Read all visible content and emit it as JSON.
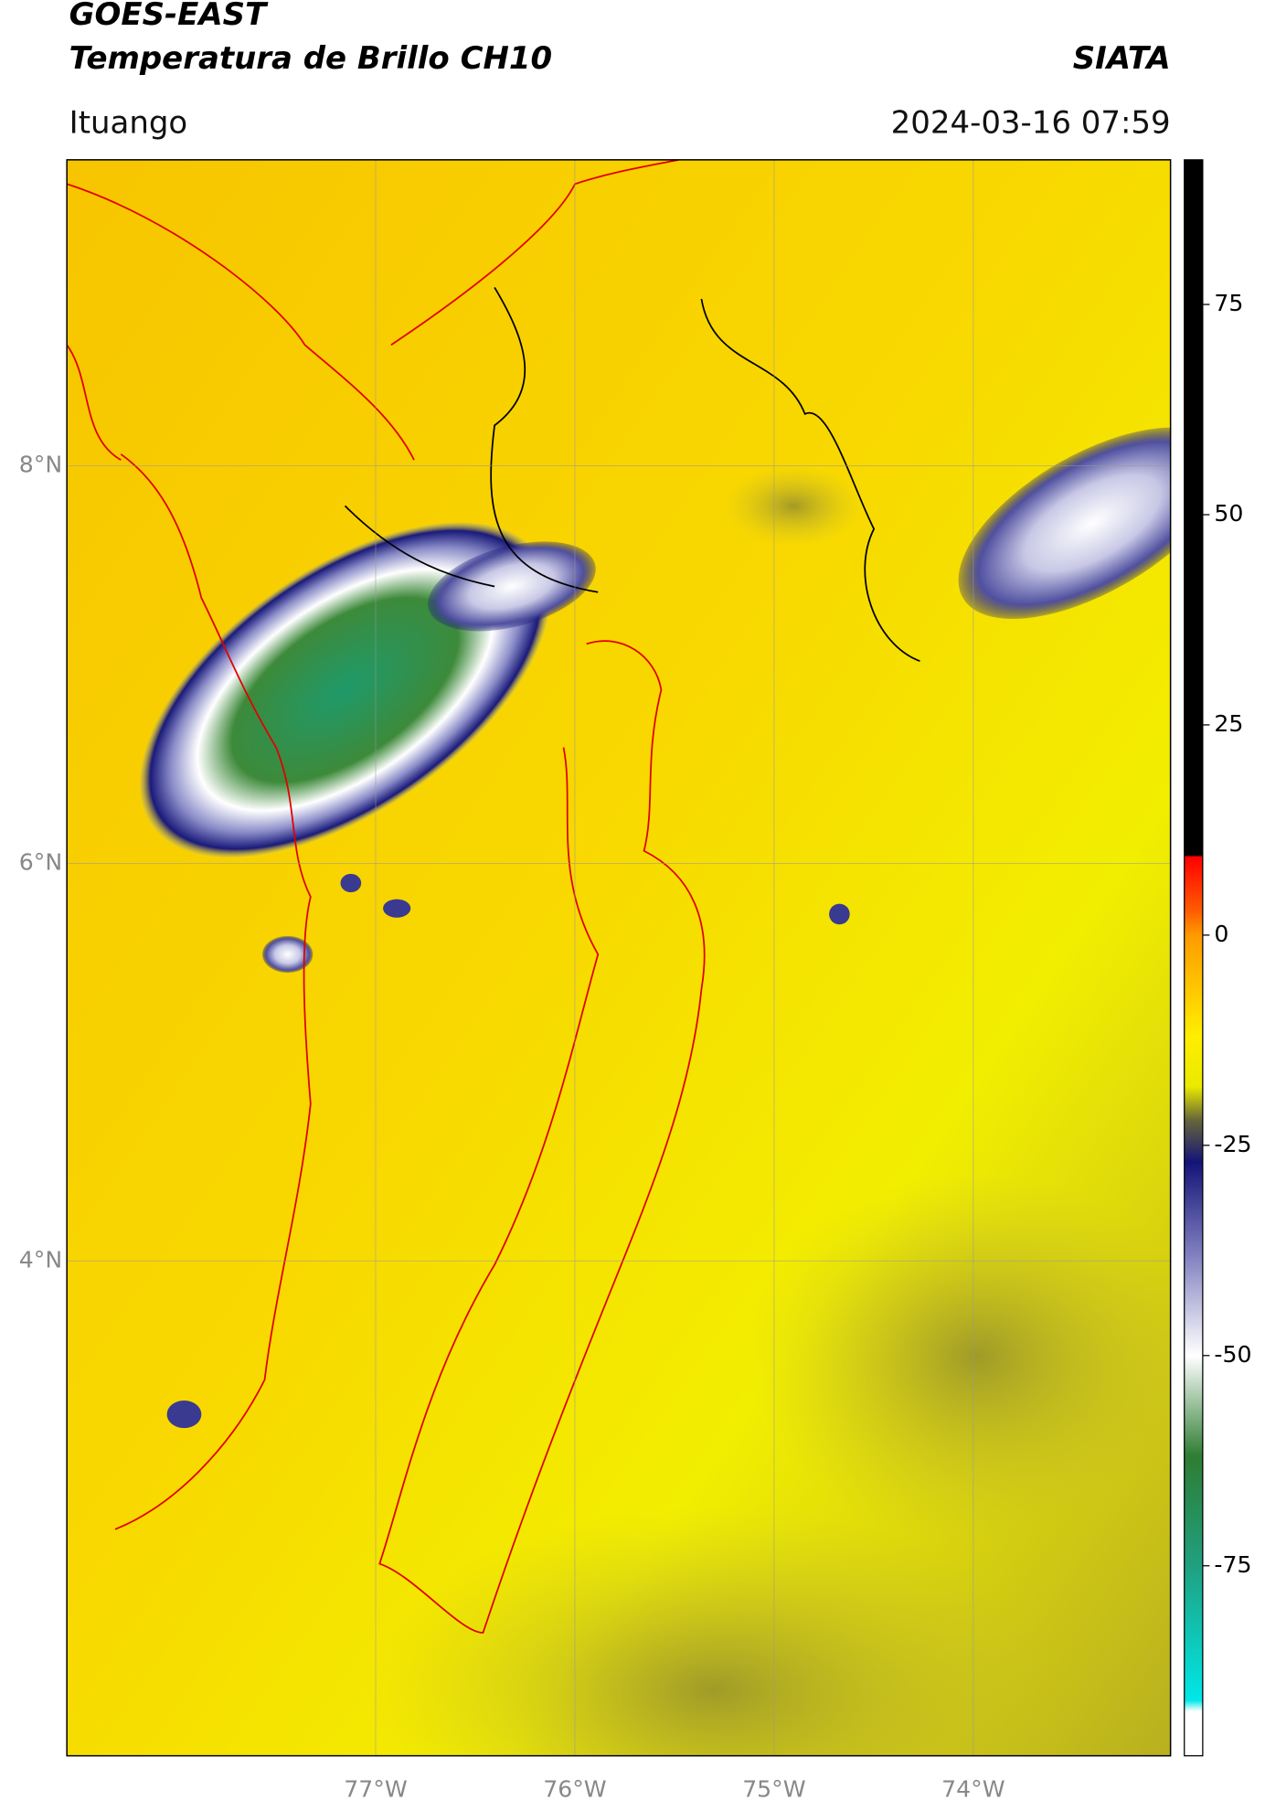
{
  "header": {
    "title": "GOES-EAST",
    "subtitle": "Temperatura de Brillo CH10",
    "source": "SIATA",
    "region": "Ituango",
    "datetime": "2024-03-16 07:59"
  },
  "map": {
    "lon_range": [
      -78.55,
      -73.01
    ],
    "lat_range": [
      1.51,
      9.54
    ],
    "lon_ticks": [
      {
        "value": -77,
        "label": "77°W"
      },
      {
        "value": -76,
        "label": "76°W"
      },
      {
        "value": -75,
        "label": "75°W"
      },
      {
        "value": -74,
        "label": "74°W"
      }
    ],
    "lat_ticks": [
      {
        "value": 8,
        "label": "8°N"
      },
      {
        "value": 6,
        "label": "6°N"
      },
      {
        "value": 4,
        "label": "4°N"
      }
    ],
    "grid": true
  },
  "colorbar": {
    "range": [
      -97.6,
      92.2
    ],
    "ticks": [
      75,
      50,
      25,
      0,
      -25,
      -50,
      -75
    ],
    "stops": [
      {
        "value": 92.2,
        "color": "#000000"
      },
      {
        "value": 9.5,
        "color": "#000000"
      },
      {
        "value": 9.3,
        "color": "#ff0000"
      },
      {
        "value": 3,
        "color": "#ff5a00"
      },
      {
        "value": 0,
        "color": "#ff9a00"
      },
      {
        "value": -12,
        "color": "#ffee00"
      },
      {
        "value": -18,
        "color": "#eaea00"
      },
      {
        "value": -22,
        "color": "#66663a"
      },
      {
        "value": -27,
        "color": "#141478"
      },
      {
        "value": -38,
        "color": "#8080c0"
      },
      {
        "value": -50,
        "color": "#ffffff"
      },
      {
        "value": -62,
        "color": "#2e7d32"
      },
      {
        "value": -75,
        "color": "#20a080"
      },
      {
        "value": -91,
        "color": "#00e8e8"
      },
      {
        "value": -92.3,
        "color": "#ffffff"
      },
      {
        "value": -97.6,
        "color": "#ffffff"
      }
    ]
  }
}
